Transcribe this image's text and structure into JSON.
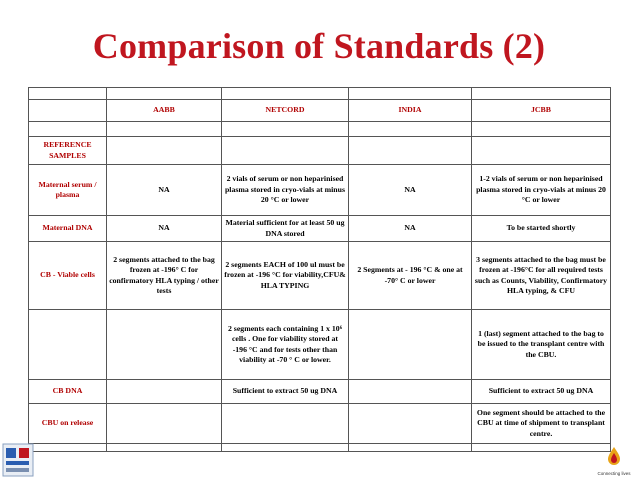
{
  "title": "Comparison of Standards (2)",
  "table": {
    "headers": [
      "",
      "AABB",
      "NETCORD",
      "INDIA",
      "JCBB"
    ],
    "rows": [
      [
        "REFERENCE SAMPLES",
        "",
        "",
        "",
        ""
      ],
      [
        "Maternal serum / plasma",
        "NA",
        "2 vials of serum or non heparinised plasma stored in cryo-vials at minus 20 °C or lower",
        "NA",
        "1-2 vials of serum or non heparinised plasma stored in cryo-vials at minus 20 °C or lower"
      ],
      [
        "Maternal DNA",
        "NA",
        "Material sufficient for at least 50 ug DNA stored",
        "NA",
        "To be started shortly"
      ],
      [
        "CB - Viable cells",
        "2 segments attached to the bag frozen at -196° C for confirmatory HLA typing / other tests",
        "2 segments EACH of 100 ul must be frozen at -196 °C for viability,CFU& HLA TYPING",
        "2 Segments at - 196 °C & one at -70° C or lower",
        "3 segments attached to the bag must be frozen at -196°C for all required tests such as Counts, Viability, Confirmatory HLA typing, & CFU"
      ],
      [
        "",
        "",
        "2 segments each containing 1 x 10⁶ cells . One for viability stored at -196 °C and for tests other than viability at -70 ° C or lower.",
        "",
        "1 (last) segment attached to the bag to be issued to the transplant centre with the CBU."
      ],
      [
        "CB DNA",
        "",
        "Sufficient to extract 50 ug DNA",
        "",
        "Sufficient to extract 50 ug DNA"
      ],
      [
        "CBU on release",
        "",
        "",
        "",
        "One segment should be attached to the CBU at time of shipment to transplant centre."
      ]
    ]
  },
  "footer": {
    "right_logo_text": "Connecting lives"
  },
  "colors": {
    "title": "#c0161f",
    "row_label": "#b00000",
    "grid_line": "#555555"
  }
}
